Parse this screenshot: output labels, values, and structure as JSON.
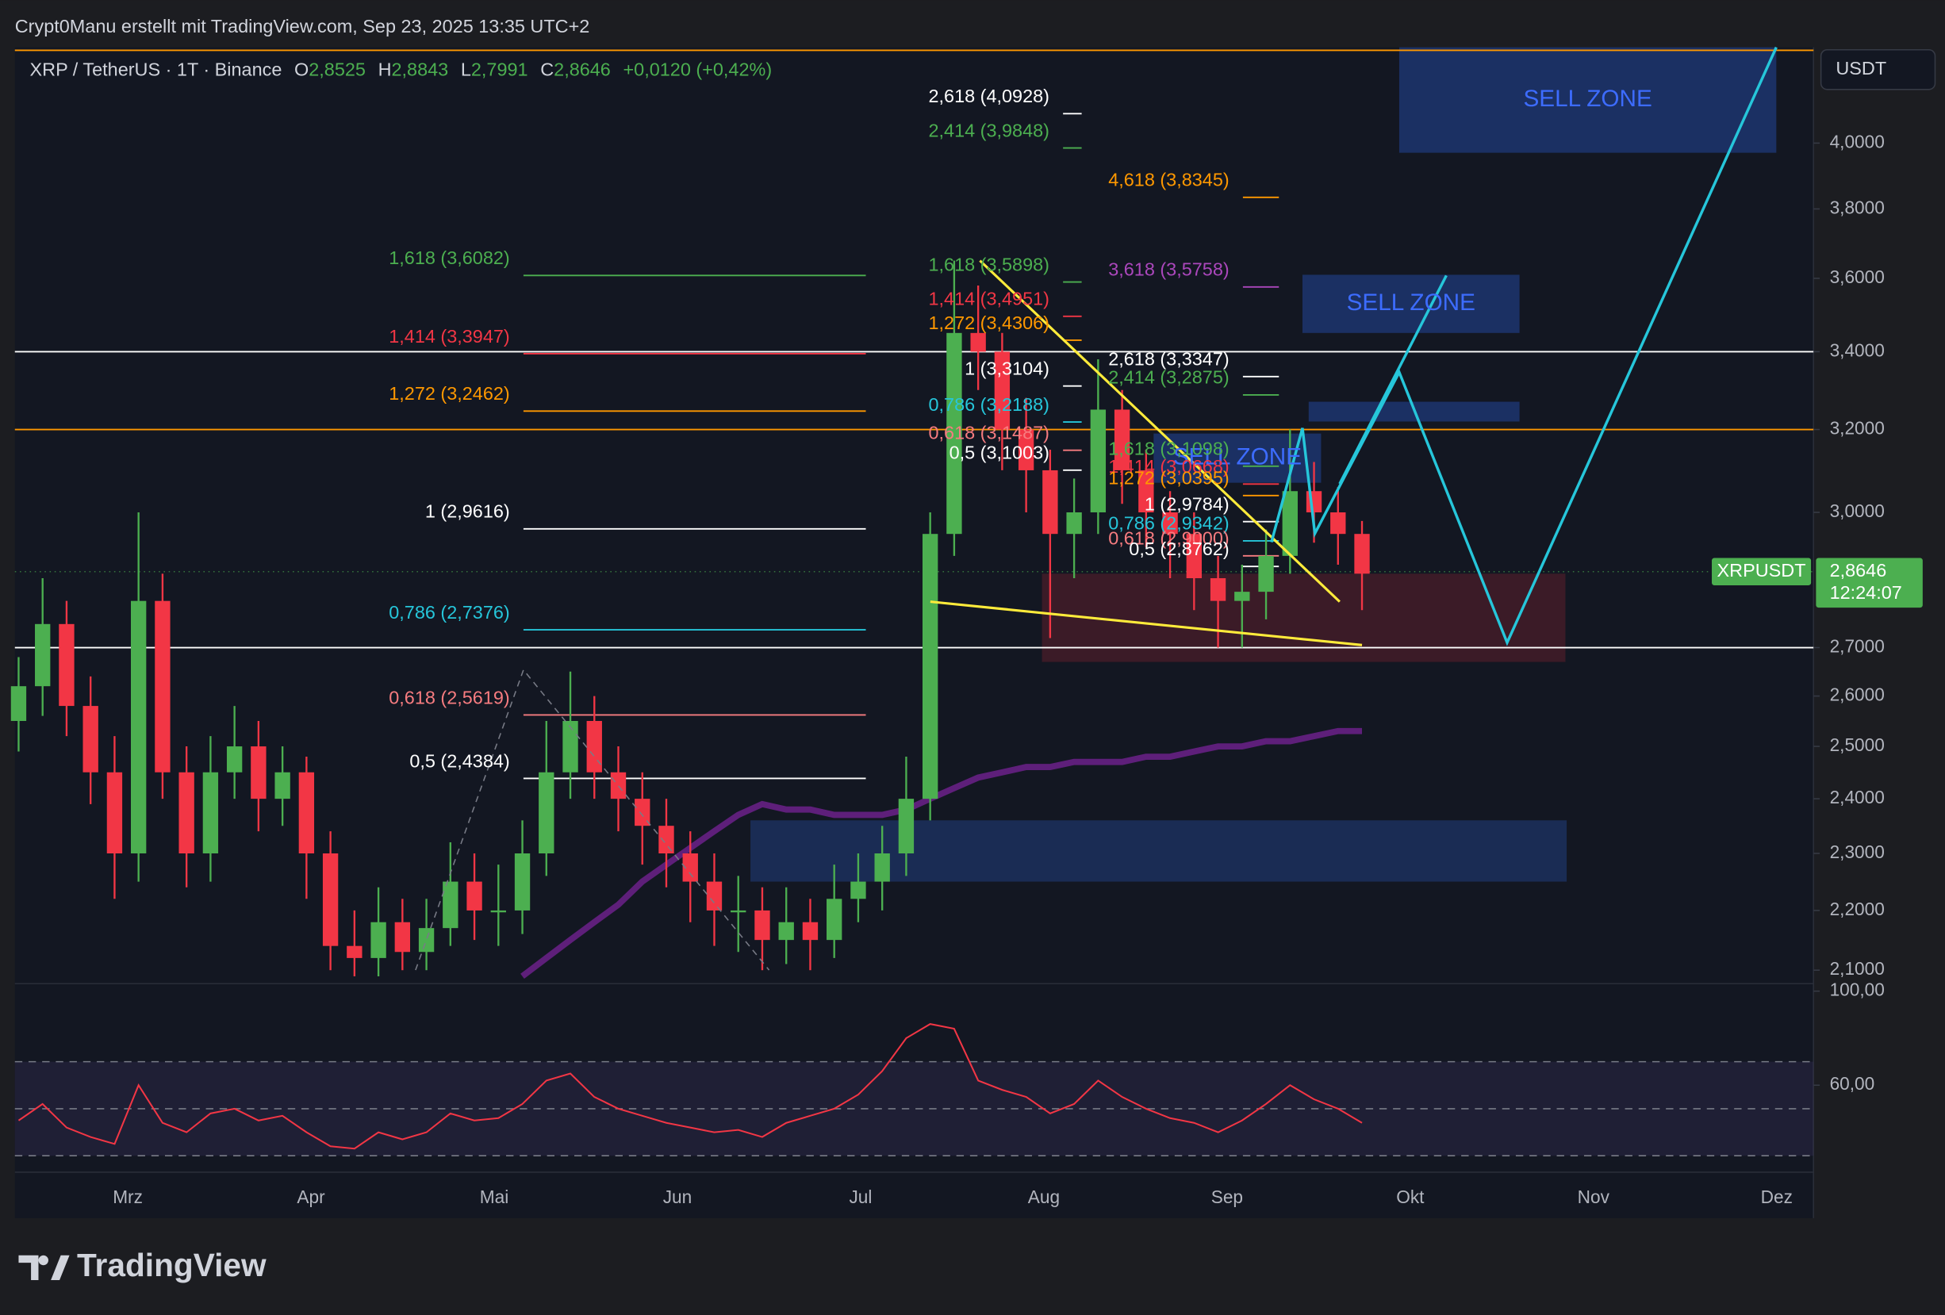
{
  "header": {
    "author_line": "Crypt0Manu erstellt mit TradingView.com, Sep 23, 2025 13:35 UTC+2"
  },
  "chart_data": {
    "type": "candlestick",
    "symbol": "XRP / TetherUS · 1T · Binance",
    "ohlc": [
      {
        "key": "O",
        "value": 2.8525,
        "label": "2,8525"
      },
      {
        "key": "H",
        "value": 2.8843,
        "label": "2,8843"
      },
      {
        "key": "L",
        "value": 2.7991,
        "label": "2,7991"
      },
      {
        "key": "C",
        "value": 2.8646,
        "label": "2,8646"
      }
    ],
    "change": "+0,0120 (+0,42%)",
    "currency": "USDT",
    "categories": [
      "Mrz",
      "Apr",
      "Mai",
      "Jun",
      "Jul",
      "Aug",
      "Sep",
      "Okt",
      "Nov",
      "Dez"
    ],
    "up_color": "#4caf50",
    "down_color": "#f23645",
    "log_scale": true,
    "ylim": [
      2.08,
      4.31
    ],
    "yticks": [
      {
        "value": 4.0,
        "label": "4,0000"
      },
      {
        "value": 3.8,
        "label": "3,8000"
      },
      {
        "value": 3.6,
        "label": "3,6000"
      },
      {
        "value": 3.4,
        "label": "3,4000"
      },
      {
        "value": 3.2,
        "label": "3,2000"
      },
      {
        "value": 3.0,
        "label": "3,0000"
      },
      {
        "value": 2.7,
        "label": "2,7000"
      },
      {
        "value": 2.6,
        "label": "2,6000"
      },
      {
        "value": 2.5,
        "label": "2,5000"
      },
      {
        "value": 2.4,
        "label": "2,4000"
      },
      {
        "value": 2.3,
        "label": "2,3000"
      },
      {
        "value": 2.2,
        "label": "2,2000"
      },
      {
        "value": 2.1,
        "label": "2,1000"
      }
    ],
    "open": [
      2.55,
      2.62,
      2.75,
      2.58,
      2.45,
      2.3,
      2.8,
      2.45,
      2.3,
      2.45,
      2.5,
      2.4,
      2.45,
      2.3,
      2.14,
      2.12,
      2.18,
      2.13,
      2.17,
      2.25,
      2.2,
      2.2,
      2.3,
      2.45,
      2.55,
      2.45,
      2.4,
      2.35,
      2.3,
      2.25,
      2.2,
      2.2,
      2.15,
      2.18,
      2.15,
      2.22,
      2.25,
      2.3,
      2.4,
      2.95,
      3.45,
      3.4,
      3.2,
      3.1,
      2.95,
      3.0,
      3.25,
      3.1,
      3.0,
      2.95,
      2.85,
      2.8,
      2.82,
      2.9,
      3.05,
      3.0,
      2.95
    ],
    "high": [
      2.68,
      2.85,
      2.8,
      2.64,
      2.52,
      3.0,
      2.86,
      2.5,
      2.52,
      2.58,
      2.55,
      2.5,
      2.48,
      2.34,
      2.2,
      2.24,
      2.22,
      2.22,
      2.32,
      2.3,
      2.28,
      2.36,
      2.55,
      2.65,
      2.6,
      2.5,
      2.45,
      2.4,
      2.34,
      2.3,
      2.26,
      2.24,
      2.24,
      2.22,
      2.28,
      2.3,
      2.35,
      2.48,
      3.0,
      3.65,
      3.58,
      3.45,
      3.28,
      3.15,
      3.08,
      3.38,
      3.3,
      3.15,
      3.05,
      3.0,
      2.9,
      2.88,
      2.96,
      3.2,
      3.12,
      3.06,
      2.98
    ],
    "low": [
      2.49,
      2.56,
      2.52,
      2.39,
      2.22,
      2.25,
      2.4,
      2.24,
      2.25,
      2.4,
      2.34,
      2.35,
      2.22,
      2.1,
      2.09,
      2.09,
      2.1,
      2.1,
      2.14,
      2.15,
      2.14,
      2.16,
      2.26,
      2.4,
      2.4,
      2.34,
      2.28,
      2.24,
      2.18,
      2.14,
      2.13,
      2.1,
      2.11,
      2.1,
      2.12,
      2.18,
      2.2,
      2.26,
      2.36,
      2.9,
      3.3,
      3.1,
      3.0,
      2.72,
      2.85,
      2.95,
      3.02,
      2.92,
      2.85,
      2.78,
      2.7,
      2.7,
      2.76,
      2.86,
      2.93,
      2.88,
      2.78
    ],
    "close": [
      2.62,
      2.75,
      2.58,
      2.45,
      2.3,
      2.8,
      2.45,
      2.3,
      2.45,
      2.5,
      2.4,
      2.45,
      2.3,
      2.14,
      2.12,
      2.18,
      2.13,
      2.17,
      2.25,
      2.2,
      2.2,
      2.3,
      2.45,
      2.55,
      2.45,
      2.4,
      2.35,
      2.3,
      2.25,
      2.2,
      2.2,
      2.15,
      2.18,
      2.15,
      2.22,
      2.25,
      2.3,
      2.4,
      2.95,
      3.45,
      3.4,
      3.2,
      3.1,
      2.95,
      3.0,
      3.25,
      3.1,
      3.0,
      2.95,
      2.85,
      2.8,
      2.82,
      2.9,
      3.05,
      3.0,
      2.95,
      2.86
    ],
    "ma": {
      "color": "#5e1f7a",
      "values": [
        null,
        null,
        null,
        null,
        null,
        null,
        null,
        null,
        null,
        null,
        null,
        null,
        null,
        null,
        null,
        null,
        null,
        null,
        null,
        null,
        null,
        2.09,
        2.12,
        2.15,
        2.18,
        2.21,
        2.25,
        2.28,
        2.31,
        2.34,
        2.37,
        2.39,
        2.38,
        2.38,
        2.37,
        2.37,
        2.37,
        2.38,
        2.4,
        2.42,
        2.44,
        2.45,
        2.46,
        2.46,
        2.47,
        2.47,
        2.47,
        2.48,
        2.48,
        2.49,
        2.5,
        2.5,
        2.51,
        2.51,
        2.52,
        2.53,
        2.53
      ]
    },
    "hlines": [
      {
        "value": 4.3,
        "color": "#ff9800"
      },
      {
        "value": 3.4,
        "color": "#ffffff"
      },
      {
        "value": 3.2,
        "color": "#ff9800"
      },
      {
        "value": 2.7,
        "color": "#ffffff"
      }
    ],
    "fibs": [
      {
        "levels": [
          {
            "label": "1,618 (3,6082)",
            "price": 3.6082,
            "color": "#4caf50"
          },
          {
            "label": "1,414 (3,3947)",
            "price": 3.3947,
            "color": "#f23645"
          },
          {
            "label": "1,272 (3,2462)",
            "price": 3.2462,
            "color": "#ff9800"
          },
          {
            "label": "1 (2,9616)",
            "price": 2.9616,
            "color": "#ffffff"
          },
          {
            "label": "0,786 (2,7376)",
            "price": 2.7376,
            "color": "#26c6da"
          },
          {
            "label": "0,618 (2,5619)",
            "price": 2.5619,
            "color": "#f77c80"
          },
          {
            "label": "0,5 (2,4384)",
            "price": 2.4384,
            "color": "#ffffff"
          }
        ]
      },
      {
        "levels": [
          {
            "label": "2,618 (4,0928)",
            "price": 4.0928,
            "color": "#ffffff"
          },
          {
            "label": "2,414 (3,9848)",
            "price": 3.9848,
            "color": "#4caf50"
          },
          {
            "label": "1,618 (3,5898)",
            "price": 3.5898,
            "color": "#4caf50"
          },
          {
            "label": "1,414 (3,4951)",
            "price": 3.4951,
            "color": "#f23645"
          },
          {
            "label": "1,272 (3,4306)",
            "price": 3.4306,
            "color": "#ff9800"
          },
          {
            "label": "1 (3,3104)",
            "price": 3.3104,
            "color": "#ffffff"
          },
          {
            "label": "0,786 (3,2188)",
            "price": 3.2188,
            "color": "#26c6da"
          },
          {
            "label": "0,618 (3,1487)",
            "price": 3.1487,
            "color": "#f77c80"
          },
          {
            "label": "0,5 (3,1003)",
            "price": 3.1003,
            "color": "#ffffff"
          }
        ]
      },
      {
        "levels": [
          {
            "label": "4,618 (3,8345)",
            "price": 3.8345,
            "color": "#ff9800"
          },
          {
            "label": "3,618 (3,5758)",
            "price": 3.5758,
            "color": "#ab47bc"
          },
          {
            "label": "2,618 (3,3347)",
            "price": 3.3347,
            "color": "#ffffff"
          },
          {
            "label": "2,414 (3,2875)",
            "price": 3.2875,
            "color": "#4caf50"
          },
          {
            "label": "1,618 (3,1098)",
            "price": 3.1098,
            "color": "#4caf50"
          },
          {
            "label": "1,414 (3,0668)",
            "price": 3.0668,
            "color": "#f23645"
          },
          {
            "label": "1,272 (3,0395)",
            "price": 3.0395,
            "color": "#ff9800"
          },
          {
            "label": "1 (2,9784)",
            "price": 2.9784,
            "color": "#ffffff"
          },
          {
            "label": "0,786 (2,9342)",
            "price": 2.9342,
            "color": "#26c6da"
          },
          {
            "label": "0,618 (2,9000)",
            "price": 2.9,
            "color": "#f77c80"
          },
          {
            "label": "0,5 (2,8762)",
            "price": 2.8762,
            "color": "#ffffff"
          }
        ]
      }
    ],
    "zones": [
      {
        "label": "SELL ZONE",
        "low": 3.97,
        "high": 4.31,
        "color": "#1f3a7a"
      },
      {
        "label": "SELL ZONE",
        "low": 3.45,
        "high": 3.61,
        "color": "#1f3a7a"
      },
      {
        "low": 3.22,
        "high": 3.27,
        "color": "#1f3a7a"
      },
      {
        "label": "SELL ZONE",
        "low": 3.07,
        "high": 3.19,
        "color": "#1f3a7a"
      },
      {
        "low": 2.67,
        "high": 2.86,
        "color": "#4a1e2a"
      },
      {
        "low": 2.25,
        "high": 2.36,
        "color": "#1e3466"
      }
    ],
    "last_price": {
      "name": "XRPUSDT",
      "value": 2.8646,
      "label": "2,8646",
      "countdown": "12:24:07",
      "color": "#4caf50"
    },
    "rsi": {
      "color": "#f23645",
      "ylim": [
        23,
        100
      ],
      "yticks": [
        {
          "value": 100,
          "label": "100,00"
        },
        {
          "value": 60,
          "label": "60,00"
        }
      ],
      "bands": [
        30,
        50,
        70
      ],
      "values": [
        45,
        52,
        42,
        38,
        35,
        60,
        44,
        40,
        48,
        50,
        45,
        47,
        40,
        34,
        33,
        40,
        37,
        40,
        48,
        45,
        46,
        52,
        62,
        65,
        55,
        50,
        47,
        44,
        42,
        40,
        41,
        38,
        44,
        47,
        50,
        56,
        66,
        80,
        86,
        84,
        62,
        58,
        55,
        48,
        52,
        62,
        55,
        50,
        46,
        44,
        40,
        45,
        52,
        60,
        54,
        50,
        44
      ]
    }
  },
  "footer": {
    "logo": "TradingView"
  }
}
